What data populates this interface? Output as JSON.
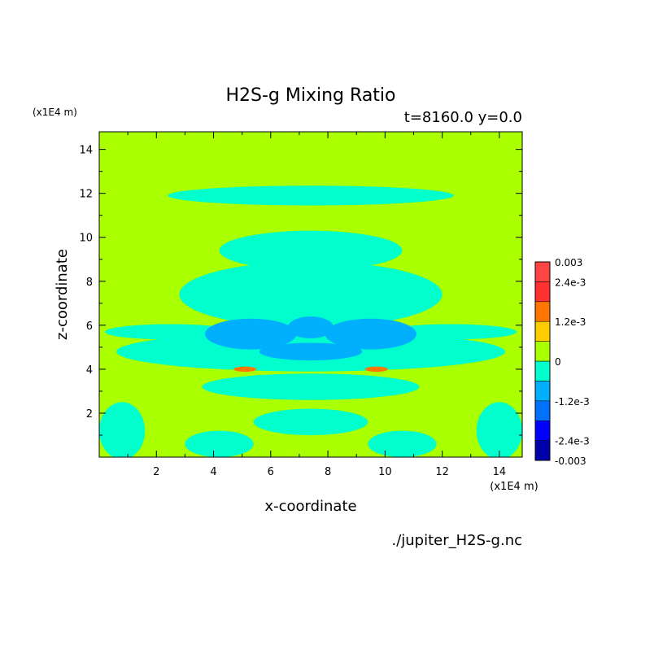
{
  "chart_data": {
    "type": "heatmap",
    "title": "H2S-g Mixing Ratio",
    "subtitle": "t=8160.0 y=0.0",
    "xlabel": "x-coordinate",
    "ylabel": "z-coordinate",
    "x_unit": "(x1E4 m)",
    "y_unit": "(x1E4 m)",
    "source": "./jupiter_H2S-g.nc",
    "xlim": [
      0,
      14.8
    ],
    "ylim": [
      0,
      14.8
    ],
    "x_ticks": [
      2,
      4,
      6,
      8,
      10,
      12,
      14
    ],
    "y_ticks": [
      2,
      4,
      6,
      8,
      10,
      12,
      14
    ],
    "colorbar": {
      "levels": [
        -0.003,
        -0.0024,
        -0.0018,
        -0.0012,
        -0.0006,
        0,
        0.0006,
        0.0012,
        0.0018,
        0.0024,
        0.003
      ],
      "colors": [
        "#0000aa",
        "#0000ff",
        "#0070ff",
        "#00b0ff",
        "#00ffcc",
        "#aaff00",
        "#ffcc00",
        "#ff7700",
        "#ff3030",
        "#ff4444"
      ],
      "labels": [
        "-0.003",
        "-2.4e-3",
        "-1.2e-3",
        "0",
        "1.2e-3",
        "2.4e-3",
        "0.003"
      ],
      "label_values": [
        -0.003,
        -0.0024,
        -0.0012,
        0,
        0.0012,
        0.0024,
        0.003
      ]
    },
    "background_level": 0,
    "regions": [
      {
        "level": -0.0006,
        "shape": "ellipse",
        "cx": 7.4,
        "cy": 7.4,
        "rx": 4.6,
        "ry": 1.5
      },
      {
        "level": -0.0006,
        "shape": "ellipse",
        "cx": 7.4,
        "cy": 9.4,
        "rx": 3.2,
        "ry": 0.9
      },
      {
        "level": -0.0006,
        "shape": "ellipse",
        "cx": 7.4,
        "cy": 11.9,
        "rx": 5.0,
        "ry": 0.45
      },
      {
        "level": -0.0006,
        "shape": "ellipse",
        "cx": 7.4,
        "cy": 4.8,
        "rx": 6.8,
        "ry": 0.9
      },
      {
        "level": -0.0006,
        "shape": "ellipse",
        "cx": 2.5,
        "cy": 5.7,
        "rx": 2.3,
        "ry": 0.35
      },
      {
        "level": -0.0006,
        "shape": "ellipse",
        "cx": 12.3,
        "cy": 5.7,
        "rx": 2.3,
        "ry": 0.35
      },
      {
        "level": -0.0006,
        "shape": "ellipse",
        "cx": 7.4,
        "cy": 3.2,
        "rx": 3.8,
        "ry": 0.6
      },
      {
        "level": -0.0006,
        "shape": "ellipse",
        "cx": 0.8,
        "cy": 1.2,
        "rx": 0.8,
        "ry": 1.3
      },
      {
        "level": -0.0006,
        "shape": "ellipse",
        "cx": 14.0,
        "cy": 1.2,
        "rx": 0.8,
        "ry": 1.3
      },
      {
        "level": -0.0006,
        "shape": "ellipse",
        "cx": 4.2,
        "cy": 0.6,
        "rx": 1.2,
        "ry": 0.6
      },
      {
        "level": -0.0006,
        "shape": "ellipse",
        "cx": 10.6,
        "cy": 0.6,
        "rx": 1.2,
        "ry": 0.6
      },
      {
        "level": -0.0006,
        "shape": "ellipse",
        "cx": 7.4,
        "cy": 1.6,
        "rx": 2.0,
        "ry": 0.6
      },
      {
        "level": -0.0012,
        "shape": "ellipse",
        "cx": 5.3,
        "cy": 5.6,
        "rx": 1.6,
        "ry": 0.7
      },
      {
        "level": -0.0012,
        "shape": "ellipse",
        "cx": 9.5,
        "cy": 5.6,
        "rx": 1.6,
        "ry": 0.7
      },
      {
        "level": -0.0012,
        "shape": "ellipse",
        "cx": 7.4,
        "cy": 5.9,
        "rx": 0.8,
        "ry": 0.5
      },
      {
        "level": -0.0012,
        "shape": "ellipse",
        "cx": 7.4,
        "cy": 4.8,
        "rx": 1.8,
        "ry": 0.4
      },
      {
        "level": 0.0012,
        "shape": "ellipse",
        "cx": 5.1,
        "cy": 4.0,
        "rx": 0.4,
        "ry": 0.12
      },
      {
        "level": 0.0012,
        "shape": "ellipse",
        "cx": 9.7,
        "cy": 4.0,
        "rx": 0.4,
        "ry": 0.12
      }
    ]
  }
}
